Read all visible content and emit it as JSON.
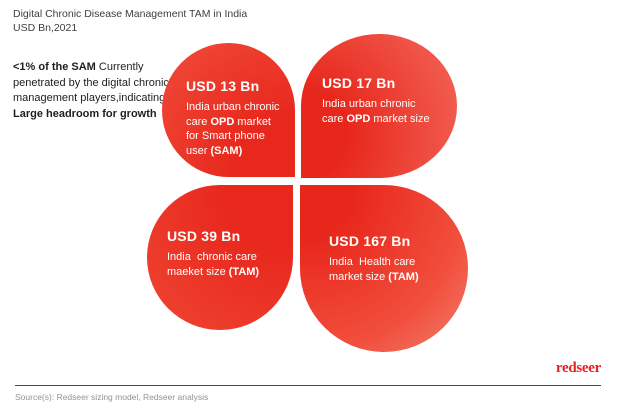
{
  "header": {
    "title": "Digital Chronic Disease Management TAM in India",
    "subtitle": "USD Bn,2021"
  },
  "annotation": {
    "bold_lead": "<1% of the SAM",
    "body": " Currently penetrated by the digital chronic management players,indicating a",
    "bold_tail": "Large headroom for growth"
  },
  "petals": [
    {
      "position": "top-left",
      "value": "USD 13 Bn",
      "desc": [
        {
          "text": "India urban chronic care ",
          "bold": false
        },
        {
          "text": "OPD",
          "bold": true
        },
        {
          "text": " market for Smart phone user ",
          "bold": false
        },
        {
          "text": "(SAM)",
          "bold": true
        }
      ]
    },
    {
      "position": "top-right",
      "value": "USD 17 Bn",
      "desc": [
        {
          "text": "India urban chronic care ",
          "bold": false
        },
        {
          "text": "OPD",
          "bold": true
        },
        {
          "text": " market size",
          "bold": false
        }
      ]
    },
    {
      "position": "bottom-left",
      "value": "USD 39 Bn",
      "desc": [
        {
          "text": "India  chronic care maeket size ",
          "bold": false
        },
        {
          "text": "(TAM)",
          "bold": true
        }
      ]
    },
    {
      "position": "bottom-right",
      "value": "USD 167 Bn",
      "desc": [
        {
          "text": "India  Health care market size ",
          "bold": false
        },
        {
          "text": "(TAM)",
          "bold": true
        }
      ]
    }
  ],
  "chart_data": {
    "type": "table",
    "title": "Digital Chronic Disease Management TAM in India",
    "subtitle": "USD Bn,2021",
    "unit": "USD Bn",
    "categories": [
      "India urban chronic care OPD market for Smart phone user (SAM)",
      "India urban chronic care OPD market size",
      "India chronic care maeket size (TAM)",
      "India Health care market size (TAM)"
    ],
    "values": [
      13,
      17,
      39,
      167
    ],
    "annotation": "<1% of the SAM Currently penetrated by the digital chronic management players,indicating a Large headroom for growth"
  },
  "footer": {
    "logo": "redseer",
    "source": "Source(s): Redseer sizing model, Redseer analysis"
  },
  "colors": {
    "petal_red": "#e8281d",
    "petal_red_light": "#f57f6d",
    "logo_red": "#ed2024",
    "title_gray": "#3e3e40",
    "source_gray": "#909295"
  }
}
